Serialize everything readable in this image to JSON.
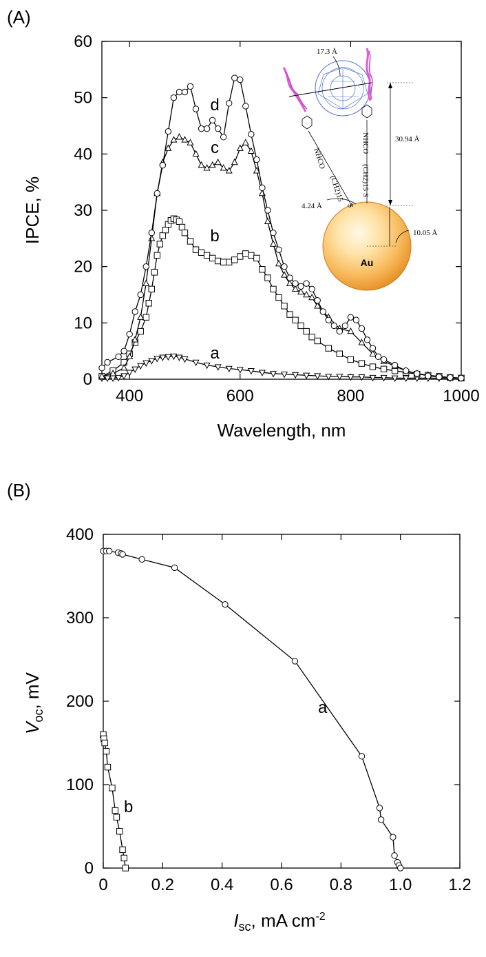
{
  "chart_data": [
    {
      "type": "scatter",
      "panel_label": "(A)",
      "xlabel": "Wavelength, nm",
      "ylabel": "IPCE, %",
      "xlim": [
        350,
        1000
      ],
      "ylim": [
        0,
        60
      ],
      "xticks": [
        400,
        600,
        800,
        1000
      ],
      "yticks": [
        0,
        10,
        20,
        30,
        40,
        50,
        60
      ],
      "grid": false,
      "lines_connect_markers": true,
      "series": [
        {
          "name": "a",
          "marker": "triangle-down",
          "x": [
            350,
            360,
            370,
            380,
            390,
            400,
            410,
            420,
            430,
            440,
            450,
            460,
            470,
            480,
            490,
            500,
            520,
            540,
            560,
            580,
            600,
            620,
            640,
            660,
            680,
            700,
            720,
            740,
            760,
            780,
            800,
            820,
            840,
            860,
            880,
            900,
            920,
            940,
            960,
            980,
            1000
          ],
          "y": [
            0.2,
            0.2,
            0.2,
            0.3,
            0.6,
            1.2,
            1.8,
            2.4,
            2.9,
            3.3,
            3.7,
            3.9,
            4.0,
            4.1,
            3.9,
            3.6,
            3.0,
            2.5,
            2.2,
            1.9,
            1.7,
            1.5,
            1.2,
            1.0,
            0.9,
            0.8,
            0.7,
            0.6,
            0.5,
            0.5,
            0.4,
            0.4,
            0.3,
            0.3,
            0.2,
            0.2,
            0.2,
            0.2,
            0.2,
            0.2,
            0.2
          ]
        },
        {
          "name": "b",
          "marker": "square",
          "x": [
            350,
            370,
            390,
            400,
            410,
            420,
            430,
            435,
            440,
            445,
            450,
            455,
            460,
            465,
            470,
            475,
            480,
            485,
            490,
            495,
            500,
            510,
            520,
            530,
            540,
            550,
            560,
            570,
            580,
            590,
            600,
            610,
            620,
            630,
            640,
            650,
            660,
            670,
            680,
            690,
            700,
            710,
            720,
            730,
            740,
            760,
            780,
            800,
            820,
            840,
            860,
            880,
            900,
            920,
            940,
            960,
            980,
            1000
          ],
          "y": [
            0.5,
            1.5,
            3.0,
            4.5,
            6.5,
            8.5,
            11.0,
            13.5,
            16.0,
            19.0,
            22.0,
            24.0,
            25.5,
            26.5,
            27.5,
            28.2,
            28.5,
            28.3,
            28.0,
            27.0,
            26.0,
            24.5,
            23.0,
            22.5,
            22.0,
            21.5,
            21.0,
            20.8,
            20.8,
            21.2,
            21.8,
            22.3,
            22.0,
            21.5,
            19.5,
            18.0,
            16.0,
            14.5,
            13.0,
            11.5,
            10.5,
            9.5,
            8.5,
            7.5,
            6.8,
            5.5,
            4.5,
            3.5,
            2.8,
            2.2,
            1.8,
            1.5,
            1.2,
            0.9,
            0.7,
            0.5,
            0.3,
            0.2
          ]
        },
        {
          "name": "c",
          "marker": "triangle-up",
          "x": [
            350,
            370,
            390,
            400,
            410,
            420,
            430,
            440,
            450,
            460,
            470,
            480,
            490,
            500,
            510,
            520,
            530,
            540,
            550,
            560,
            570,
            580,
            590,
            600,
            610,
            620,
            630,
            640,
            650,
            660,
            670,
            680,
            690,
            700,
            710,
            720,
            730,
            740,
            760,
            780,
            800,
            820,
            840,
            860,
            880,
            900,
            920,
            940,
            960,
            980,
            1000
          ],
          "y": [
            0.5,
            1.0,
            2.0,
            4.0,
            7.0,
            11.0,
            17.0,
            25.0,
            33.0,
            38.5,
            41.0,
            42.5,
            43.0,
            42.5,
            42.0,
            40.0,
            38.0,
            37.5,
            38.0,
            38.5,
            37.5,
            37.0,
            38.5,
            41.0,
            42.0,
            40.5,
            37.0,
            33.0,
            28.0,
            24.0,
            20.5,
            18.5,
            17.0,
            16.0,
            15.5,
            15.0,
            14.5,
            13.0,
            11.0,
            9.0,
            8.5,
            6.5,
            4.5,
            3.2,
            2.3,
            1.5,
            1.0,
            0.7,
            0.4,
            0.3,
            0.2
          ]
        },
        {
          "name": "d",
          "marker": "circle",
          "x": [
            350,
            360,
            380,
            390,
            400,
            410,
            420,
            430,
            440,
            450,
            460,
            470,
            480,
            490,
            500,
            510,
            520,
            530,
            540,
            550,
            560,
            570,
            580,
            590,
            600,
            610,
            620,
            630,
            640,
            650,
            660,
            670,
            680,
            690,
            700,
            710,
            720,
            730,
            740,
            750,
            760,
            770,
            780,
            790,
            800,
            810,
            820,
            830,
            840,
            850,
            860,
            880,
            900,
            920,
            940,
            960,
            980,
            1000
          ],
          "y": [
            2.0,
            3.0,
            4.0,
            5.0,
            8.0,
            12.0,
            15.0,
            20.0,
            26.0,
            33.0,
            38.0,
            44.0,
            50.0,
            51.0,
            51.0,
            52.0,
            48.0,
            44.5,
            44.5,
            46.0,
            44.5,
            43.0,
            49.0,
            53.5,
            53.2,
            48.5,
            43.5,
            39.0,
            34.0,
            30.0,
            26.0,
            23.0,
            20.0,
            18.0,
            17.0,
            16.5,
            17.0,
            16.0,
            14.0,
            12.0,
            10.5,
            9.5,
            8.5,
            9.5,
            11.0,
            10.5,
            9.0,
            7.0,
            5.5,
            4.0,
            3.5,
            2.5,
            1.5,
            1.0,
            0.6,
            0.4,
            0.3,
            0.2
          ]
        }
      ],
      "inset": {
        "atom_label": "Au",
        "dims": [
          "17.3 Å",
          "30.94 Å",
          "4.24 Å",
          "10.05 Å"
        ],
        "chain_labels": [
          "NHCO",
          "(CH2)15",
          "S"
        ],
        "colors": {
          "fullerene": "#4a6cd4",
          "porphyrin": "#e05ad6",
          "au_outer": "#f2a33b",
          "au_inner": "#fff2cf"
        }
      }
    },
    {
      "type": "line",
      "panel_label": "(B)",
      "xlabel": "Isc, mA cm-2",
      "ylabel": "Voc, mV",
      "xlim": [
        0,
        1.2
      ],
      "ylim": [
        0,
        400
      ],
      "xticks": [
        "0",
        "0.2",
        "0.4",
        "0.6",
        "0.8",
        "1.0",
        "1.2"
      ],
      "yticks": [
        0,
        100,
        200,
        300,
        400
      ],
      "grid": false,
      "series": [
        {
          "name": "a",
          "marker": "circle",
          "x": [
            0.0,
            0.01,
            0.02,
            0.05,
            0.06,
            0.065,
            0.13,
            0.24,
            0.41,
            0.645,
            0.87,
            0.93,
            0.935,
            0.975,
            0.98,
            0.99,
            0.995,
            1.0
          ],
          "y": [
            380,
            380,
            380,
            378,
            377,
            376,
            370,
            360,
            316,
            248,
            134,
            72,
            58,
            37,
            15,
            7,
            3,
            0
          ]
        },
        {
          "name": "b",
          "marker": "square",
          "x": [
            0.0,
            0.002,
            0.005,
            0.01,
            0.015,
            0.03,
            0.04,
            0.045,
            0.055,
            0.065,
            0.07,
            0.075
          ],
          "y": [
            160,
            155,
            150,
            140,
            121,
            96,
            69,
            61,
            44,
            22,
            12,
            0
          ]
        }
      ]
    }
  ]
}
